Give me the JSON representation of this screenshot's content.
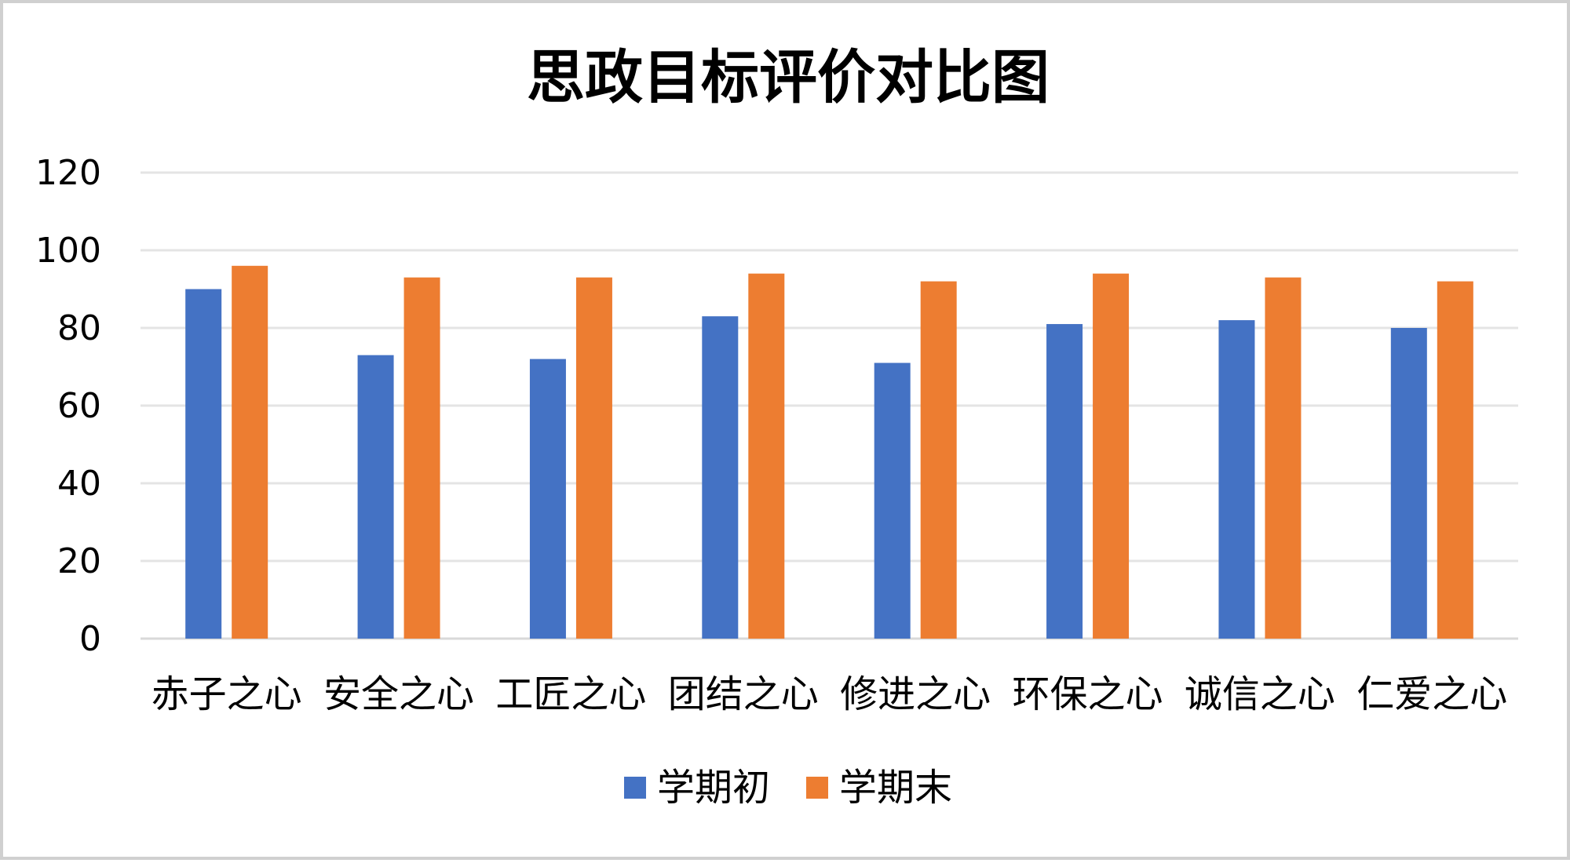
{
  "chart_data": {
    "type": "bar",
    "title": "思政目标评价对比图",
    "categories": [
      "赤子之心",
      "安全之心",
      "工匠之心",
      "团结之心",
      "修进之心",
      "环保之心",
      "诚信之心",
      "仁爱之心"
    ],
    "series": [
      {
        "name": "学期初",
        "color": "#4472C4",
        "values": [
          90,
          73,
          72,
          83,
          71,
          81,
          82,
          80
        ]
      },
      {
        "name": "学期末",
        "color": "#ED7D31",
        "values": [
          96,
          93,
          93,
          94,
          92,
          94,
          93,
          92
        ]
      }
    ],
    "ylim": [
      0,
      120
    ],
    "yticks": [
      "0",
      "20",
      "40",
      "60",
      "80",
      "100",
      "120"
    ],
    "grid": true,
    "legend_position": "bottom"
  }
}
